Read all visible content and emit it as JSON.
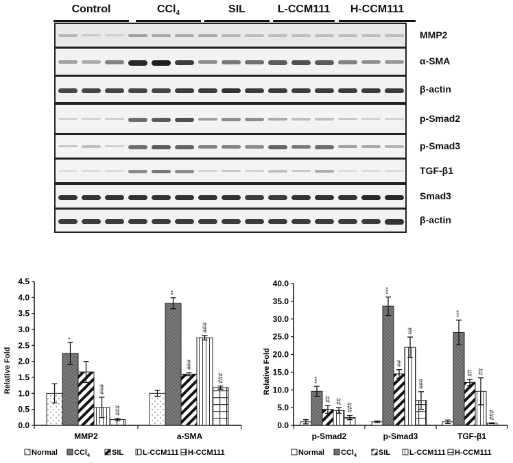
{
  "western_blot": {
    "groups": [
      {
        "label": "Control"
      },
      {
        "label": "CCl",
        "sub": "4"
      },
      {
        "label": "SIL"
      },
      {
        "label": "L-CCM111"
      },
      {
        "label": "H-CCM111"
      }
    ],
    "rows": [
      {
        "label": "MMP2"
      },
      {
        "label": "α-SMA"
      },
      {
        "label": "β-actin"
      },
      {
        "label": "p-Smad2"
      },
      {
        "label": "p-Smad3"
      },
      {
        "label": "TGF-β1"
      },
      {
        "label": "Smad3"
      },
      {
        "label": "β-actin"
      }
    ]
  },
  "chart_data": [
    {
      "type": "bar",
      "title": "",
      "xlabel": "",
      "ylabel": "Relative Fold",
      "ylim": [
        0,
        4.5
      ],
      "yticks": [
        "0.0",
        "0.5",
        "1.0",
        "1.5",
        "2.0",
        "2.5",
        "3.0",
        "3.5",
        "4.0",
        "4.5"
      ],
      "categories": [
        "MMP2",
        "a-SMA"
      ],
      "legend_position": "bottom",
      "series": [
        {
          "name": "Normal",
          "values": [
            1.0,
            1.0
          ],
          "errors": [
            0.3,
            0.1
          ],
          "annotations": [
            "",
            ""
          ]
        },
        {
          "name": "CCl4",
          "values": [
            2.25,
            3.82
          ],
          "errors": [
            0.35,
            0.17
          ],
          "annotations": [
            "*",
            "**"
          ]
        },
        {
          "name": "SIL",
          "values": [
            1.67,
            1.6
          ],
          "errors": [
            0.33,
            0.05
          ],
          "annotations": [
            "",
            "###"
          ]
        },
        {
          "name": "L-CCM111",
          "values": [
            0.56,
            2.74
          ],
          "errors": [
            0.32,
            0.07
          ],
          "annotations": [
            "###",
            "###"
          ]
        },
        {
          "name": "H-CCM111",
          "values": [
            0.18,
            1.18
          ],
          "errors": [
            0.04,
            0.05
          ],
          "annotations": [
            "###",
            "###"
          ]
        }
      ]
    },
    {
      "type": "bar",
      "title": "",
      "xlabel": "",
      "ylabel": "Relative Fold",
      "ylim": [
        0,
        40
      ],
      "yticks": [
        "0.0",
        "5.0",
        "10.0",
        "15.0",
        "20.0",
        "25.0",
        "30.0",
        "35.0",
        "40.0"
      ],
      "categories": [
        "p-Smad2",
        "p-Smad3",
        "TGF-β1"
      ],
      "legend_position": "bottom",
      "series": [
        {
          "name": "Normal",
          "values": [
            1.0,
            1.0,
            1.0
          ],
          "errors": [
            0.6,
            0.2,
            0.5
          ],
          "annotations": [
            "",
            "",
            ""
          ]
        },
        {
          "name": "CCl4",
          "values": [
            9.6,
            33.6,
            26.2
          ],
          "errors": [
            1.4,
            2.6,
            3.5
          ],
          "annotations": [
            "***",
            "***",
            "***"
          ]
        },
        {
          "name": "SIL",
          "values": [
            4.5,
            14.5,
            12.1
          ],
          "errors": [
            1.1,
            1.2,
            0.9
          ],
          "annotations": [
            "##",
            "##",
            "##"
          ]
        },
        {
          "name": "L-CCM111",
          "values": [
            4.2,
            22.0,
            9.6
          ],
          "errors": [
            0.8,
            2.9,
            3.8
          ],
          "annotations": [
            "##",
            "##",
            "##"
          ]
        },
        {
          "name": "H-CCM111",
          "values": [
            2.2,
            7.0,
            0.6
          ],
          "errors": [
            0.6,
            2.5,
            0.1
          ],
          "annotations": [
            "###",
            "###",
            "###"
          ]
        }
      ]
    }
  ],
  "legend": {
    "items": [
      {
        "label": "Normal"
      },
      {
        "label": "CCl",
        "sub": "4"
      },
      {
        "label": "SIL"
      },
      {
        "label": "L-CCM111"
      },
      {
        "label": "H-CCM111"
      }
    ]
  }
}
